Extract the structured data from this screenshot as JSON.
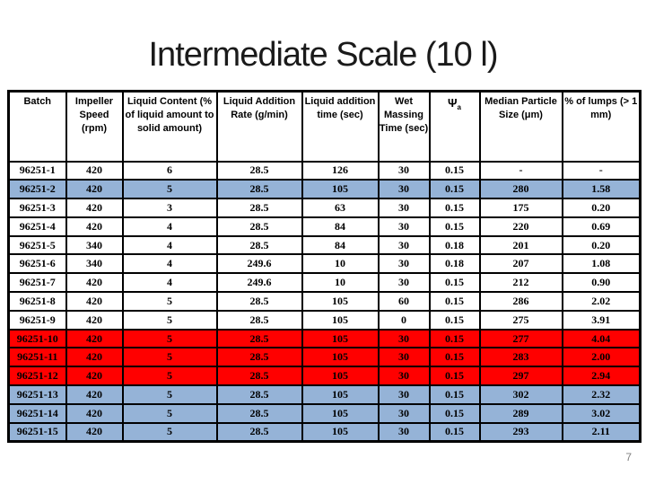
{
  "slide": {
    "title": "Intermediate Scale (10 l)",
    "page_number": "7"
  },
  "colors": {
    "highlight_blue": "#95B3D7",
    "highlight_red": "#FF0000",
    "border": "#000000",
    "page_number_gray": "#808080"
  },
  "table": {
    "columns": [
      {
        "id": "batch",
        "label": "Batch"
      },
      {
        "id": "impeller_speed",
        "label": "Impeller Speed (rpm)"
      },
      {
        "id": "liquid_content",
        "label": "Liquid Content (% of liquid amount to solid amount)"
      },
      {
        "id": "addition_rate",
        "label": "Liquid Addition Rate (g/min)"
      },
      {
        "id": "addition_time",
        "label": "Liquid addition time (sec)"
      },
      {
        "id": "wet_massing",
        "label": "Wet Massing Time (sec)"
      },
      {
        "id": "psi_a",
        "label": "Ψ",
        "label_sub": "a"
      },
      {
        "id": "median_size",
        "label": "Median Particle Size (μm)"
      },
      {
        "id": "lumps",
        "label": "% of lumps (> 1 mm)"
      }
    ],
    "rows": [
      {
        "batch": "96251-1",
        "impeller_speed": "420",
        "liquid_content": "6",
        "addition_rate": "28.5",
        "addition_time": "126",
        "wet_massing": "30",
        "psi_a": "0.15",
        "median_size": "-",
        "lumps": "-",
        "highlight": "none"
      },
      {
        "batch": "96251-2",
        "impeller_speed": "420",
        "liquid_content": "5",
        "addition_rate": "28.5",
        "addition_time": "105",
        "wet_massing": "30",
        "psi_a": "0.15",
        "median_size": "280",
        "lumps": "1.58",
        "highlight": "blue"
      },
      {
        "batch": "96251-3",
        "impeller_speed": "420",
        "liquid_content": "3",
        "addition_rate": "28.5",
        "addition_time": "63",
        "wet_massing": "30",
        "psi_a": "0.15",
        "median_size": "175",
        "lumps": "0.20",
        "highlight": "none"
      },
      {
        "batch": "96251-4",
        "impeller_speed": "420",
        "liquid_content": "4",
        "addition_rate": "28.5",
        "addition_time": "84",
        "wet_massing": "30",
        "psi_a": "0.15",
        "median_size": "220",
        "lumps": "0.69",
        "highlight": "none"
      },
      {
        "batch": "96251-5",
        "impeller_speed": "340",
        "liquid_content": "4",
        "addition_rate": "28.5",
        "addition_time": "84",
        "wet_massing": "30",
        "psi_a": "0.18",
        "median_size": "201",
        "lumps": "0.20",
        "highlight": "none"
      },
      {
        "batch": "96251-6",
        "impeller_speed": "340",
        "liquid_content": "4",
        "addition_rate": "249.6",
        "addition_time": "10",
        "wet_massing": "30",
        "psi_a": "0.18",
        "median_size": "207",
        "lumps": "1.08",
        "highlight": "none"
      },
      {
        "batch": "96251-7",
        "impeller_speed": "420",
        "liquid_content": "4",
        "addition_rate": "249.6",
        "addition_time": "10",
        "wet_massing": "30",
        "psi_a": "0.15",
        "median_size": "212",
        "lumps": "0.90",
        "highlight": "none"
      },
      {
        "batch": "96251-8",
        "impeller_speed": "420",
        "liquid_content": "5",
        "addition_rate": "28.5",
        "addition_time": "105",
        "wet_massing": "60",
        "psi_a": "0.15",
        "median_size": "286",
        "lumps": "2.02",
        "highlight": "none"
      },
      {
        "batch": "96251-9",
        "impeller_speed": "420",
        "liquid_content": "5",
        "addition_rate": "28.5",
        "addition_time": "105",
        "wet_massing": "0",
        "psi_a": "0.15",
        "median_size": "275",
        "lumps": "3.91",
        "highlight": "none"
      },
      {
        "batch": "96251-10",
        "impeller_speed": "420",
        "liquid_content": "5",
        "addition_rate": "28.5",
        "addition_time": "105",
        "wet_massing": "30",
        "psi_a": "0.15",
        "median_size": "277",
        "lumps": "4.04",
        "highlight": "red"
      },
      {
        "batch": "96251-11",
        "impeller_speed": "420",
        "liquid_content": "5",
        "addition_rate": "28.5",
        "addition_time": "105",
        "wet_massing": "30",
        "psi_a": "0.15",
        "median_size": "283",
        "lumps": "2.00",
        "highlight": "red"
      },
      {
        "batch": "96251-12",
        "impeller_speed": "420",
        "liquid_content": "5",
        "addition_rate": "28.5",
        "addition_time": "105",
        "wet_massing": "30",
        "psi_a": "0.15",
        "median_size": "297",
        "lumps": "2.94",
        "highlight": "red"
      },
      {
        "batch": "96251-13",
        "impeller_speed": "420",
        "liquid_content": "5",
        "addition_rate": "28.5",
        "addition_time": "105",
        "wet_massing": "30",
        "psi_a": "0.15",
        "median_size": "302",
        "lumps": "2.32",
        "highlight": "blue"
      },
      {
        "batch": "96251-14",
        "impeller_speed": "420",
        "liquid_content": "5",
        "addition_rate": "28.5",
        "addition_time": "105",
        "wet_massing": "30",
        "psi_a": "0.15",
        "median_size": "289",
        "lumps": "3.02",
        "highlight": "blue"
      },
      {
        "batch": "96251-15",
        "impeller_speed": "420",
        "liquid_content": "5",
        "addition_rate": "28.5",
        "addition_time": "105",
        "wet_massing": "30",
        "psi_a": "0.15",
        "median_size": "293",
        "lumps": "2.11",
        "highlight": "blue"
      }
    ]
  }
}
